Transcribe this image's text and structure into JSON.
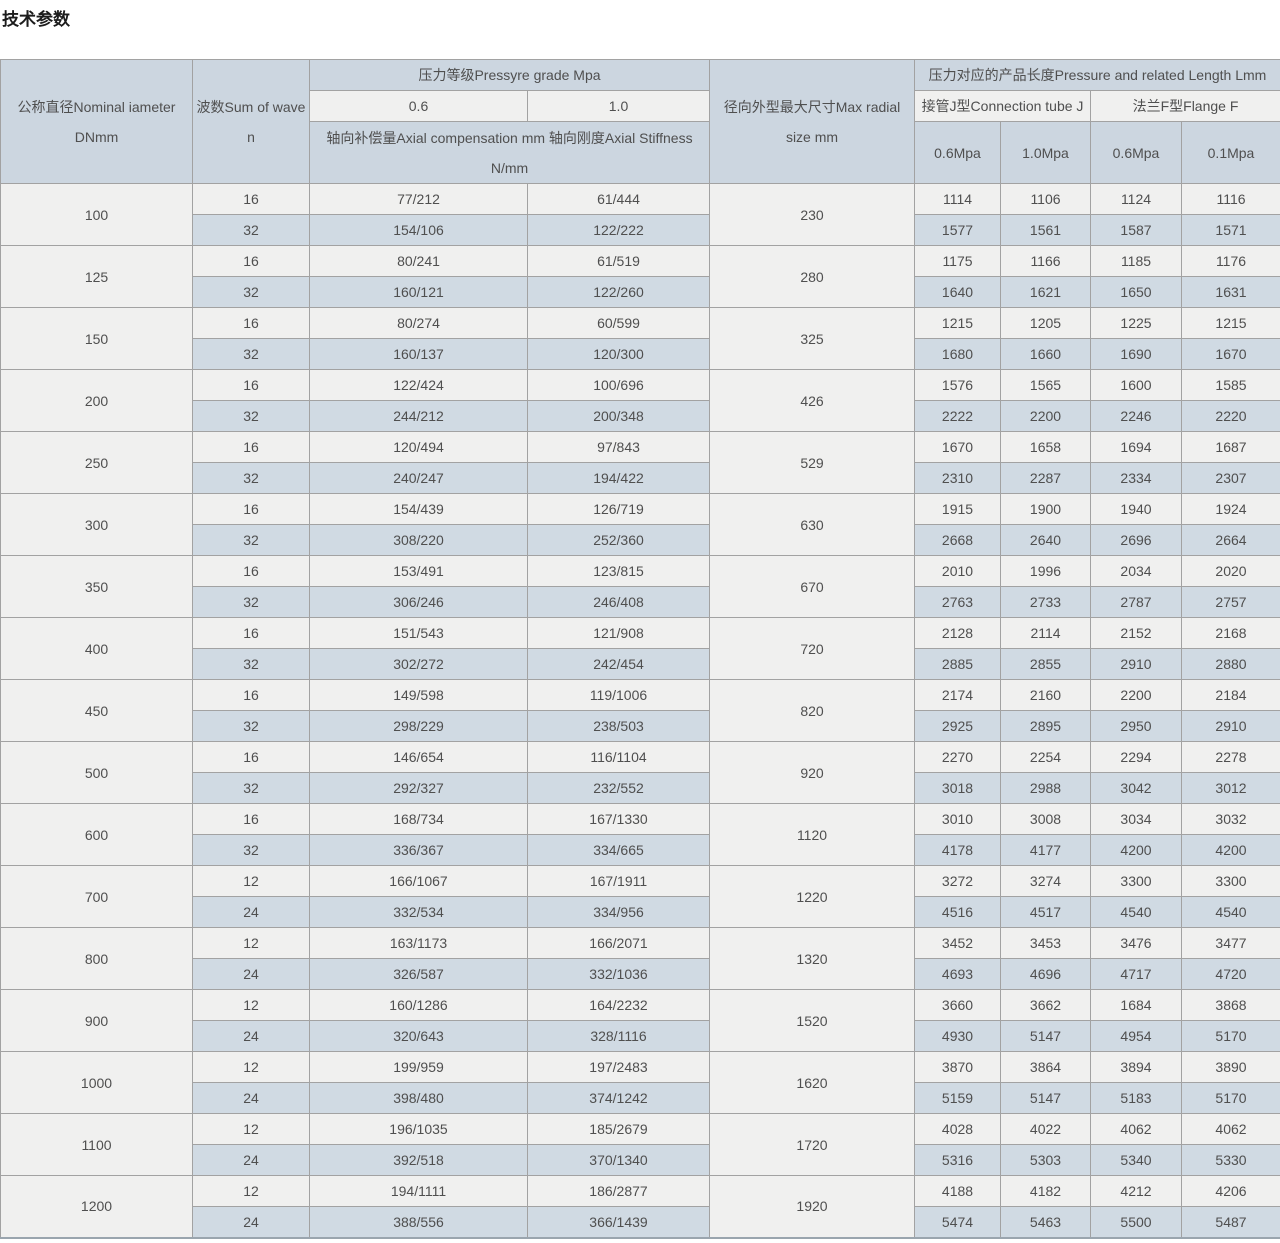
{
  "title": "技术参数",
  "colors": {
    "header_bg": "#ccd6e0",
    "row_light_bg": "#f0f0ef",
    "row_blue_bg": "#d0dae3",
    "border": "#a2a2a2",
    "text": "#4f4f4f"
  },
  "table": {
    "header": {
      "nominal_diameter": "公称直径Nominal iameter DNmm",
      "wave_count": "波数Sum of wave n",
      "pressure_grade": "压力等级Pressyre grade Mpa",
      "grade_06": "0.6",
      "grade_10": "1.0",
      "axial_spec": "轴向补偿量Axial compensation mm 轴向刚度Axial Stiffness N/mm",
      "max_radial": "径向外型最大尺寸Max radial size mm",
      "pressure_length": "压力对应的产品长度Pressure and related Length Lmm",
      "connection_tube": "接管J型Connection tube J",
      "flange": "法兰F型Flange F",
      "j_06": "0.6Mpa",
      "j_10": "1.0Mpa",
      "f_06": "0.6Mpa",
      "f_01": "0.1Mpa"
    },
    "rows": [
      {
        "dn": "100",
        "radial": "230",
        "sub": [
          {
            "wave": "16",
            "axial_06": "77/212",
            "axial_10": "61/444",
            "j06": "1114",
            "j10": "1106",
            "f06": "1124",
            "f01": "1116"
          },
          {
            "wave": "32",
            "axial_06": "154/106",
            "axial_10": "122/222",
            "j06": "1577",
            "j10": "1561",
            "f06": "1587",
            "f01": "1571"
          }
        ]
      },
      {
        "dn": "125",
        "radial": "280",
        "sub": [
          {
            "wave": "16",
            "axial_06": "80/241",
            "axial_10": "61/519",
            "j06": "1175",
            "j10": "1166",
            "f06": "1185",
            "f01": "1176"
          },
          {
            "wave": "32",
            "axial_06": "160/121",
            "axial_10": "122/260",
            "j06": "1640",
            "j10": "1621",
            "f06": "1650",
            "f01": "1631"
          }
        ]
      },
      {
        "dn": "150",
        "radial": "325",
        "sub": [
          {
            "wave": "16",
            "axial_06": "80/274",
            "axial_10": "60/599",
            "j06": "1215",
            "j10": "1205",
            "f06": "1225",
            "f01": "1215"
          },
          {
            "wave": "32",
            "axial_06": "160/137",
            "axial_10": "120/300",
            "j06": "1680",
            "j10": "1660",
            "f06": "1690",
            "f01": "1670"
          }
        ]
      },
      {
        "dn": "200",
        "radial": "426",
        "sub": [
          {
            "wave": "16",
            "axial_06": "122/424",
            "axial_10": "100/696",
            "j06": "1576",
            "j10": "1565",
            "f06": "1600",
            "f01": "1585"
          },
          {
            "wave": "32",
            "axial_06": "244/212",
            "axial_10": "200/348",
            "j06": "2222",
            "j10": "2200",
            "f06": "2246",
            "f01": "2220"
          }
        ]
      },
      {
        "dn": "250",
        "radial": "529",
        "sub": [
          {
            "wave": "16",
            "axial_06": "120/494",
            "axial_10": "97/843",
            "j06": "1670",
            "j10": "1658",
            "f06": "1694",
            "f01": "1687"
          },
          {
            "wave": "32",
            "axial_06": "240/247",
            "axial_10": "194/422",
            "j06": "2310",
            "j10": "2287",
            "f06": "2334",
            "f01": "2307"
          }
        ]
      },
      {
        "dn": "300",
        "radial": "630",
        "sub": [
          {
            "wave": "16",
            "axial_06": "154/439",
            "axial_10": "126/719",
            "j06": "1915",
            "j10": "1900",
            "f06": "1940",
            "f01": "1924"
          },
          {
            "wave": "32",
            "axial_06": "308/220",
            "axial_10": "252/360",
            "j06": "2668",
            "j10": "2640",
            "f06": "2696",
            "f01": "2664"
          }
        ]
      },
      {
        "dn": "350",
        "radial": "670",
        "sub": [
          {
            "wave": "16",
            "axial_06": "153/491",
            "axial_10": "123/815",
            "j06": "2010",
            "j10": "1996",
            "f06": "2034",
            "f01": "2020"
          },
          {
            "wave": "32",
            "axial_06": "306/246",
            "axial_10": "246/408",
            "j06": "2763",
            "j10": "2733",
            "f06": "2787",
            "f01": "2757"
          }
        ]
      },
      {
        "dn": "400",
        "radial": "720",
        "sub": [
          {
            "wave": "16",
            "axial_06": "151/543",
            "axial_10": "121/908",
            "j06": "2128",
            "j10": "2114",
            "f06": "2152",
            "f01": "2168"
          },
          {
            "wave": "32",
            "axial_06": "302/272",
            "axial_10": "242/454",
            "j06": "2885",
            "j10": "2855",
            "f06": "2910",
            "f01": "2880"
          }
        ]
      },
      {
        "dn": "450",
        "radial": "820",
        "sub": [
          {
            "wave": "16",
            "axial_06": "149/598",
            "axial_10": "119/1006",
            "j06": "2174",
            "j10": "2160",
            "f06": "2200",
            "f01": "2184"
          },
          {
            "wave": "32",
            "axial_06": "298/229",
            "axial_10": "238/503",
            "j06": "2925",
            "j10": "2895",
            "f06": "2950",
            "f01": "2910"
          }
        ]
      },
      {
        "dn": "500",
        "radial": "920",
        "sub": [
          {
            "wave": "16",
            "axial_06": "146/654",
            "axial_10": "116/1104",
            "j06": "2270",
            "j10": "2254",
            "f06": "2294",
            "f01": "2278"
          },
          {
            "wave": "32",
            "axial_06": "292/327",
            "axial_10": "232/552",
            "j06": "3018",
            "j10": "2988",
            "f06": "3042",
            "f01": "3012"
          }
        ]
      },
      {
        "dn": "600",
        "radial": "1120",
        "sub": [
          {
            "wave": "16",
            "axial_06": "168/734",
            "axial_10": "167/1330",
            "j06": "3010",
            "j10": "3008",
            "f06": "3034",
            "f01": "3032"
          },
          {
            "wave": "32",
            "axial_06": "336/367",
            "axial_10": "334/665",
            "j06": "4178",
            "j10": "4177",
            "f06": "4200",
            "f01": "4200"
          }
        ]
      },
      {
        "dn": "700",
        "radial": "1220",
        "sub": [
          {
            "wave": "12",
            "axial_06": "166/1067",
            "axial_10": "167/1911",
            "j06": "3272",
            "j10": "3274",
            "f06": "3300",
            "f01": "3300"
          },
          {
            "wave": "24",
            "axial_06": "332/534",
            "axial_10": "334/956",
            "j06": "4516",
            "j10": "4517",
            "f06": "4540",
            "f01": "4540"
          }
        ]
      },
      {
        "dn": "800",
        "radial": "1320",
        "sub": [
          {
            "wave": "12",
            "axial_06": "163/1173",
            "axial_10": "166/2071",
            "j06": "3452",
            "j10": "3453",
            "f06": "3476",
            "f01": "3477"
          },
          {
            "wave": "24",
            "axial_06": "326/587",
            "axial_10": "332/1036",
            "j06": "4693",
            "j10": "4696",
            "f06": "4717",
            "f01": "4720"
          }
        ]
      },
      {
        "dn": "900",
        "radial": "1520",
        "sub": [
          {
            "wave": "12",
            "axial_06": "160/1286",
            "axial_10": "164/2232",
            "j06": "3660",
            "j10": "3662",
            "f06": "1684",
            "f01": "3868"
          },
          {
            "wave": "24",
            "axial_06": "320/643",
            "axial_10": "328/1116",
            "j06": "4930",
            "j10": "5147",
            "f06": "4954",
            "f01": "5170"
          }
        ]
      },
      {
        "dn": "1000",
        "radial": "1620",
        "sub": [
          {
            "wave": "12",
            "axial_06": "199/959",
            "axial_10": "197/2483",
            "j06": "3870",
            "j10": "3864",
            "f06": "3894",
            "f01": "3890"
          },
          {
            "wave": "24",
            "axial_06": "398/480",
            "axial_10": "374/1242",
            "j06": "5159",
            "j10": "5147",
            "f06": "5183",
            "f01": "5170"
          }
        ]
      },
      {
        "dn": "1100",
        "radial": "1720",
        "sub": [
          {
            "wave": "12",
            "axial_06": "196/1035",
            "axial_10": "185/2679",
            "j06": "4028",
            "j10": "4022",
            "f06": "4062",
            "f01": "4062"
          },
          {
            "wave": "24",
            "axial_06": "392/518",
            "axial_10": "370/1340",
            "j06": "5316",
            "j10": "5303",
            "f06": "5340",
            "f01": "5330"
          }
        ]
      },
      {
        "dn": "1200",
        "radial": "1920",
        "sub": [
          {
            "wave": "12",
            "axial_06": "194/1111",
            "axial_10": "186/2877",
            "j06": "4188",
            "j10": "4182",
            "f06": "4212",
            "f01": "4206"
          },
          {
            "wave": "24",
            "axial_06": "388/556",
            "axial_10": "366/1439",
            "j06": "5474",
            "j10": "5463",
            "f06": "5500",
            "f01": "5487"
          }
        ]
      }
    ]
  }
}
